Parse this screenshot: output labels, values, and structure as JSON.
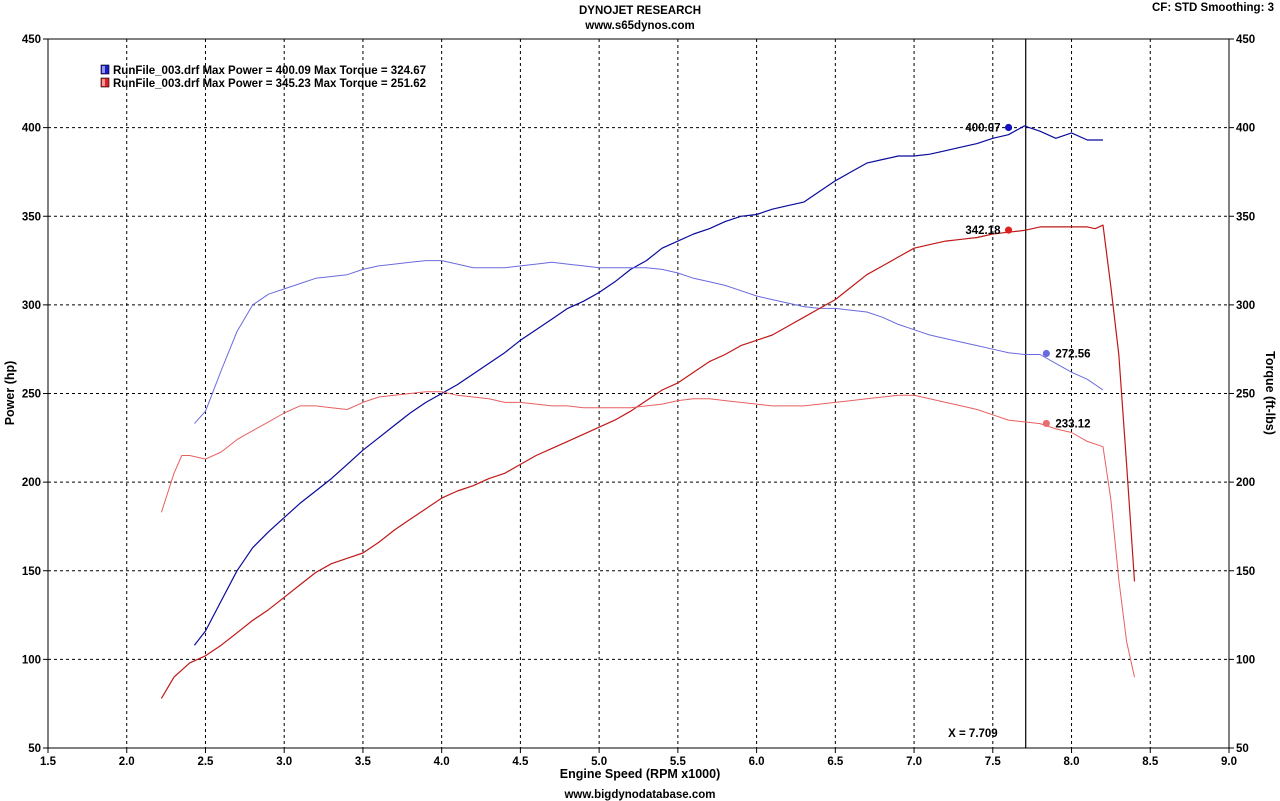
{
  "header": {
    "title": "DYNOJET RESEARCH",
    "website": "www.s65dynos.com",
    "cf_label": "CF: STD  Smoothing: 3",
    "footer": "www.bigdynodatabase.com"
  },
  "chart_data": {
    "type": "line",
    "xlabel": "Engine Speed (RPM x1000)",
    "ylabel_left": "Power (hp)",
    "ylabel_right": "Torque (ft-lbs)",
    "xlim": [
      1.5,
      9.0
    ],
    "ylim": [
      50,
      450
    ],
    "x_ticks": [
      "1.5",
      "2.0",
      "2.5",
      "3.0",
      "3.5",
      "4.0",
      "4.5",
      "5.0",
      "5.5",
      "6.0",
      "6.5",
      "7.0",
      "7.5",
      "8.0",
      "8.5",
      "9.0"
    ],
    "y_ticks": [
      "50",
      "100",
      "150",
      "200",
      "250",
      "300",
      "350",
      "400",
      "450"
    ],
    "grid": true,
    "legend": [
      {
        "label": "RunFile_003.drf Max Power = 400.09     Max Torque = 324.67",
        "color": "#1a1ad0"
      },
      {
        "label": "RunFile_003.drf Max Power = 345.23     Max Torque = 251.62",
        "color": "#e02020"
      }
    ],
    "cursor": {
      "x": 7.709,
      "label": "X = 7.709"
    },
    "series": [
      {
        "name": "RunFile_003.drf Power",
        "kind": "power",
        "color": "#0a0a9c",
        "width": 1.2,
        "x": [
          2.43,
          2.5,
          2.6,
          2.7,
          2.8,
          2.9,
          3.0,
          3.1,
          3.2,
          3.3,
          3.4,
          3.5,
          3.6,
          3.7,
          3.8,
          3.9,
          4.0,
          4.1,
          4.2,
          4.3,
          4.4,
          4.5,
          4.6,
          4.7,
          4.8,
          4.9,
          5.0,
          5.1,
          5.2,
          5.3,
          5.4,
          5.5,
          5.6,
          5.7,
          5.8,
          5.9,
          6.0,
          6.1,
          6.2,
          6.3,
          6.4,
          6.5,
          6.6,
          6.7,
          6.8,
          6.9,
          7.0,
          7.1,
          7.2,
          7.3,
          7.4,
          7.5,
          7.6,
          7.7,
          7.8,
          7.9,
          8.0,
          8.1,
          8.2
        ],
        "y": [
          108,
          116,
          133,
          150,
          163,
          172,
          180,
          188,
          195,
          202,
          210,
          218,
          225,
          232,
          239,
          245,
          250,
          255,
          261,
          267,
          273,
          280,
          286,
          292,
          298,
          302,
          307,
          313,
          320,
          325,
          332,
          336,
          340,
          343,
          347,
          350,
          351,
          354,
          356,
          358,
          364,
          370,
          375,
          380,
          382,
          384,
          384,
          385,
          387,
          389,
          391,
          394,
          396,
          401,
          398,
          394,
          397,
          393,
          393
        ]
      },
      {
        "name": "RunFile_003.drf Torque",
        "kind": "torque",
        "color": "#6a6ae0",
        "width": 1,
        "x": [
          2.43,
          2.5,
          2.6,
          2.7,
          2.8,
          2.9,
          3.0,
          3.1,
          3.2,
          3.3,
          3.4,
          3.5,
          3.6,
          3.7,
          3.8,
          3.9,
          4.0,
          4.1,
          4.2,
          4.3,
          4.4,
          4.5,
          4.6,
          4.7,
          4.8,
          4.9,
          5.0,
          5.1,
          5.2,
          5.3,
          5.4,
          5.5,
          5.6,
          5.7,
          5.8,
          5.9,
          6.0,
          6.1,
          6.2,
          6.3,
          6.4,
          6.5,
          6.6,
          6.7,
          6.8,
          6.9,
          7.0,
          7.1,
          7.2,
          7.3,
          7.4,
          7.5,
          7.6,
          7.7,
          7.8,
          7.9,
          8.0,
          8.1,
          8.2
        ],
        "y": [
          233,
          240,
          263,
          285,
          300,
          306,
          309,
          312,
          315,
          316,
          317,
          320,
          322,
          323,
          324,
          325,
          325,
          323,
          321,
          321,
          321,
          322,
          323,
          324,
          323,
          322,
          321,
          321,
          321,
          321,
          320,
          318,
          315,
          313,
          311,
          308,
          305,
          303,
          301,
          299,
          298,
          298,
          297,
          296,
          293,
          289,
          286,
          283,
          281,
          279,
          277,
          275,
          273,
          272,
          272,
          267,
          262,
          258,
          252
        ]
      },
      {
        "name": "RunFile_003.drf Power",
        "kind": "power",
        "color": "#c01818",
        "width": 1.2,
        "x": [
          2.22,
          2.3,
          2.4,
          2.5,
          2.6,
          2.7,
          2.8,
          2.9,
          3.0,
          3.1,
          3.2,
          3.3,
          3.4,
          3.5,
          3.6,
          3.7,
          3.8,
          3.9,
          4.0,
          4.1,
          4.2,
          4.3,
          4.4,
          4.5,
          4.6,
          4.7,
          4.8,
          4.9,
          5.0,
          5.1,
          5.2,
          5.3,
          5.4,
          5.5,
          5.6,
          5.7,
          5.8,
          5.9,
          6.0,
          6.1,
          6.2,
          6.3,
          6.4,
          6.5,
          6.6,
          6.7,
          6.8,
          6.9,
          7.0,
          7.1,
          7.2,
          7.3,
          7.4,
          7.5,
          7.6,
          7.7,
          7.8,
          7.9,
          8.0,
          8.1,
          8.15,
          8.2,
          8.25,
          8.3,
          8.35,
          8.4
        ],
        "y": [
          78,
          90,
          98,
          102,
          108,
          115,
          122,
          128,
          135,
          142,
          149,
          154,
          157,
          160,
          166,
          173,
          179,
          185,
          191,
          195,
          198,
          202,
          205,
          210,
          215,
          219,
          223,
          227,
          231,
          235,
          240,
          246,
          252,
          256,
          262,
          268,
          272,
          277,
          280,
          283,
          288,
          293,
          298,
          303,
          310,
          317,
          322,
          327,
          332,
          334,
          336,
          337,
          338,
          340,
          341,
          342,
          344,
          344,
          344,
          344,
          343,
          345,
          310,
          272,
          210,
          144
        ]
      },
      {
        "name": "RunFile_003.drf Torque",
        "kind": "torque",
        "color": "#e86060",
        "width": 1,
        "x": [
          2.22,
          2.3,
          2.35,
          2.4,
          2.5,
          2.6,
          2.7,
          2.8,
          2.9,
          3.0,
          3.1,
          3.2,
          3.3,
          3.4,
          3.5,
          3.6,
          3.7,
          3.8,
          3.9,
          4.0,
          4.1,
          4.2,
          4.3,
          4.4,
          4.5,
          4.6,
          4.7,
          4.8,
          4.9,
          5.0,
          5.1,
          5.2,
          5.3,
          5.4,
          5.5,
          5.6,
          5.7,
          5.8,
          5.9,
          6.0,
          6.1,
          6.2,
          6.3,
          6.4,
          6.5,
          6.6,
          6.7,
          6.8,
          6.9,
          7.0,
          7.1,
          7.2,
          7.3,
          7.4,
          7.5,
          7.6,
          7.7,
          7.8,
          7.9,
          8.0,
          8.1,
          8.2,
          8.25,
          8.3,
          8.35,
          8.4
        ],
        "y": [
          183,
          205,
          215,
          215,
          213,
          217,
          224,
          229,
          234,
          239,
          243,
          243,
          242,
          241,
          245,
          248,
          249,
          250,
          251,
          251,
          249,
          248,
          247,
          245,
          245,
          244,
          243,
          243,
          242,
          242,
          242,
          242,
          243,
          244,
          246,
          247,
          247,
          246,
          245,
          244,
          243,
          243,
          243,
          244,
          245,
          246,
          247,
          248,
          249,
          249,
          247,
          245,
          243,
          241,
          238,
          235,
          234,
          233,
          230,
          228,
          223,
          220,
          190,
          145,
          110,
          90
        ]
      }
    ],
    "markers": [
      {
        "label": "400.07",
        "x": 7.6,
        "y": 400.07,
        "color": "#1010c0",
        "label_side": "left"
      },
      {
        "label": "342.18",
        "x": 7.6,
        "y": 342.18,
        "color": "#e02020",
        "label_side": "left"
      },
      {
        "label": "272.56",
        "x": 7.84,
        "y": 272.56,
        "color": "#6a6ae0",
        "label_side": "right"
      },
      {
        "label": "233.12",
        "x": 7.84,
        "y": 233.12,
        "color": "#e87070",
        "label_side": "right"
      }
    ]
  }
}
